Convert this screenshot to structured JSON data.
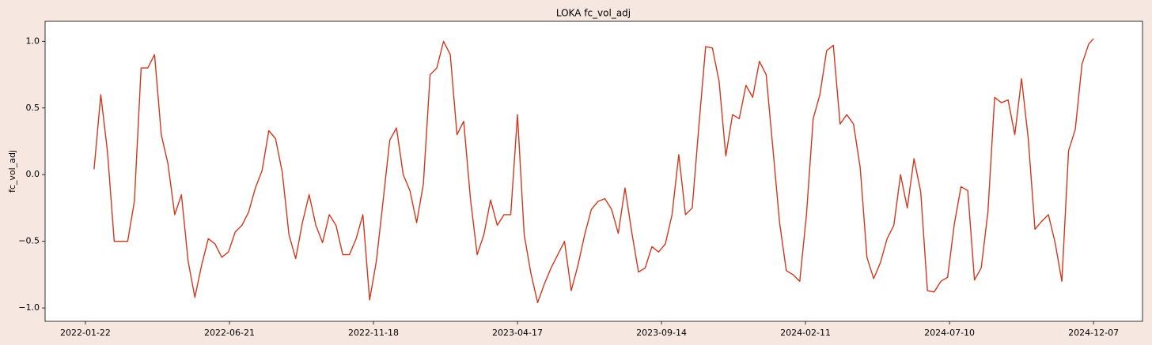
{
  "chart_data": {
    "type": "line",
    "title": "LOKA fc_vol_adj",
    "y_label": "fc_vol_adj",
    "color": "#d2381e",
    "xlim": [
      "2021-12-11",
      "2025-01-27"
    ],
    "xticks": [
      "2022-01-22",
      "2022-06-21",
      "2022-11-18",
      "2023-04-17",
      "2023-09-14",
      "2024-02-11",
      "2024-07-10",
      "2024-12-07"
    ],
    "ylim": [
      -1.1,
      1.15
    ],
    "yticks": [
      {
        "value": -1,
        "label": "−1.0"
      },
      {
        "value": -0.5,
        "label": "−0.5"
      },
      {
        "value": 0,
        "label": "0.0"
      },
      {
        "value": 0.5,
        "label": "0.5"
      },
      {
        "value": 1,
        "label": "1.0"
      }
    ],
    "x": [
      "2022-01-31",
      "2022-02-07",
      "2022-02-14",
      "2022-02-21",
      "2022-02-28",
      "2022-03-07",
      "2022-03-14",
      "2022-03-21",
      "2022-03-28",
      "2022-04-04",
      "2022-04-11",
      "2022-04-18",
      "2022-04-25",
      "2022-05-02",
      "2022-05-09",
      "2022-05-16",
      "2022-05-23",
      "2022-05-30",
      "2022-06-06",
      "2022-06-13",
      "2022-06-20",
      "2022-06-27",
      "2022-07-04",
      "2022-07-11",
      "2022-07-18",
      "2022-07-25",
      "2022-08-01",
      "2022-08-08",
      "2022-08-15",
      "2022-08-22",
      "2022-08-29",
      "2022-09-05",
      "2022-09-12",
      "2022-09-19",
      "2022-09-26",
      "2022-10-03",
      "2022-10-10",
      "2022-10-17",
      "2022-10-24",
      "2022-10-31",
      "2022-11-07",
      "2022-11-14",
      "2022-11-21",
      "2022-11-28",
      "2022-12-05",
      "2022-12-12",
      "2022-12-19",
      "2022-12-26",
      "2023-01-02",
      "2023-01-09",
      "2023-01-16",
      "2023-01-23",
      "2023-01-30",
      "2023-02-06",
      "2023-02-13",
      "2023-02-20",
      "2023-02-27",
      "2023-03-06",
      "2023-03-13",
      "2023-03-20",
      "2023-03-27",
      "2023-04-03",
      "2023-04-10",
      "2023-04-17",
      "2023-04-24",
      "2023-05-01",
      "2023-05-08",
      "2023-05-15",
      "2023-05-22",
      "2023-05-29",
      "2023-06-05",
      "2023-06-12",
      "2023-06-19",
      "2023-06-26",
      "2023-07-03",
      "2023-07-10",
      "2023-07-17",
      "2023-07-24",
      "2023-07-31",
      "2023-08-07",
      "2023-08-14",
      "2023-08-21",
      "2023-08-28",
      "2023-09-04",
      "2023-09-11",
      "2023-09-18",
      "2023-09-25",
      "2023-10-02",
      "2023-10-09",
      "2023-10-16",
      "2023-10-23",
      "2023-10-30",
      "2023-11-06",
      "2023-11-13",
      "2023-11-20",
      "2023-11-27",
      "2023-12-04",
      "2023-12-11",
      "2023-12-18",
      "2023-12-25",
      "2024-01-01",
      "2024-01-08",
      "2024-01-15",
      "2024-01-22",
      "2024-01-29",
      "2024-02-05",
      "2024-02-12",
      "2024-02-19",
      "2024-02-26",
      "2024-03-04",
      "2024-03-11",
      "2024-03-18",
      "2024-03-25",
      "2024-04-01",
      "2024-04-08",
      "2024-04-15",
      "2024-04-22",
      "2024-04-29",
      "2024-05-06",
      "2024-05-13",
      "2024-05-20",
      "2024-05-27",
      "2024-06-03",
      "2024-06-10",
      "2024-06-17",
      "2024-06-24",
      "2024-07-01",
      "2024-07-08",
      "2024-07-15",
      "2024-07-22",
      "2024-07-29",
      "2024-08-05",
      "2024-08-12",
      "2024-08-19",
      "2024-08-26",
      "2024-09-02",
      "2024-09-09",
      "2024-09-16",
      "2024-09-23",
      "2024-09-30",
      "2024-10-07",
      "2024-10-14",
      "2024-10-21",
      "2024-10-28",
      "2024-11-04",
      "2024-11-11",
      "2024-11-18",
      "2024-11-25",
      "2024-12-02",
      "2024-12-07"
    ],
    "values": [
      0.04,
      0.6,
      0.17,
      -0.5,
      -0.5,
      -0.5,
      -0.2,
      0.8,
      0.8,
      0.9,
      0.3,
      0.08,
      -0.3,
      -0.15,
      -0.65,
      -0.92,
      -0.68,
      -0.48,
      -0.52,
      -0.62,
      -0.58,
      -0.43,
      -0.38,
      -0.28,
      -0.1,
      0.03,
      0.33,
      0.27,
      0.02,
      -0.45,
      -0.63,
      -0.36,
      -0.15,
      -0.38,
      -0.51,
      -0.3,
      -0.38,
      -0.6,
      -0.6,
      -0.48,
      -0.3,
      -0.94,
      -0.65,
      -0.2,
      0.26,
      0.35,
      0.0,
      -0.12,
      -0.36,
      -0.07,
      0.75,
      0.8,
      1.0,
      0.9,
      0.3,
      0.4,
      -0.18,
      -0.6,
      -0.45,
      -0.19,
      -0.38,
      -0.3,
      -0.3,
      0.45,
      -0.45,
      -0.74,
      -0.96,
      -0.82,
      -0.7,
      -0.6,
      -0.5,
      -0.87,
      -0.68,
      -0.45,
      -0.26,
      -0.2,
      -0.18,
      -0.26,
      -0.44,
      -0.1,
      -0.43,
      -0.73,
      -0.7,
      -0.54,
      -0.58,
      -0.52,
      -0.3,
      0.15,
      -0.3,
      -0.25,
      0.37,
      0.96,
      0.95,
      0.7,
      0.14,
      0.45,
      0.42,
      0.67,
      0.58,
      0.85,
      0.75,
      0.2,
      -0.36,
      -0.72,
      -0.75,
      -0.8,
      -0.3,
      0.42,
      0.6,
      0.93,
      0.97,
      0.38,
      0.45,
      0.38,
      0.05,
      -0.62,
      -0.78,
      -0.66,
      -0.48,
      -0.38,
      0.0,
      -0.25,
      0.12,
      -0.13,
      -0.87,
      -0.88,
      -0.8,
      -0.77,
      -0.37,
      -0.09,
      -0.12,
      -0.79,
      -0.7,
      -0.28,
      0.58,
      0.54,
      0.56,
      0.3,
      0.72,
      0.27,
      -0.41,
      -0.35,
      -0.3,
      -0.51,
      -0.8,
      0.18,
      0.34,
      0.83,
      0.98,
      1.02
    ]
  }
}
